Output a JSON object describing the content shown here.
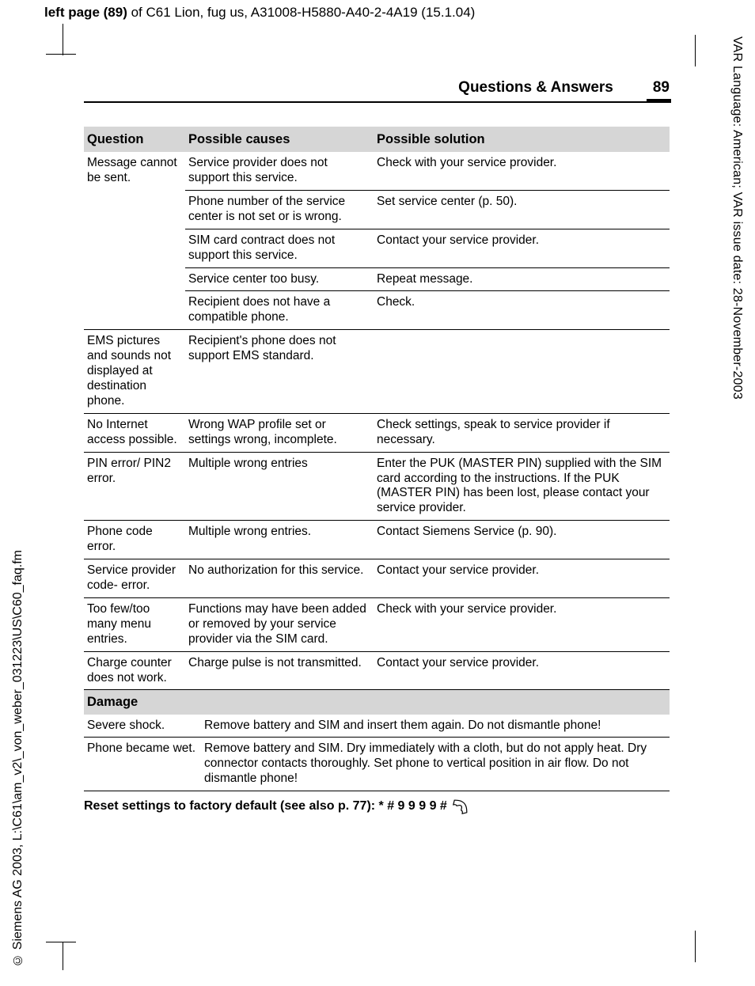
{
  "top_header": {
    "bold": "left page (89)",
    "rest": " of C61 Lion, fug us, A31008-H5880-A40-2-4A19 (15.1.04)"
  },
  "side_right": "VAR Language: American; VAR issue date: 28-November-2003",
  "side_left": "© Siemens AG 2003, L:\\C61\\am_v2\\_von_weber_031223\\US\\C60_faq.fm",
  "running_head": {
    "title": "Questions & Answers",
    "page": "89"
  },
  "headers": {
    "q": "Question",
    "c": "Possible causes",
    "s": "Possible solution"
  },
  "col_widths": {
    "q": "128px",
    "c": "238px",
    "s": "auto"
  },
  "rows": [
    {
      "q": "Message cannot be sent.",
      "items": [
        {
          "c": "Service provider does not support this service.",
          "s": "Check with your service provider."
        },
        {
          "c": "Phone number of the service center is not set or is wrong.",
          "s": "Set service center (p. 50)."
        },
        {
          "c": "SIM card contract does not support this service.",
          "s": "Contact your service provider."
        },
        {
          "c": "Service center too busy.",
          "s": "Repeat message."
        },
        {
          "c": "Recipient does not have a compatible phone.",
          "s": "Check."
        }
      ]
    },
    {
      "q": "EMS pictures and sounds not displayed at destination phone.",
      "items": [
        {
          "c": "Recipient's phone does not support EMS standard.",
          "s": ""
        }
      ]
    },
    {
      "q": "No Internet access possible.",
      "items": [
        {
          "c": "Wrong WAP profile set or settings wrong, incomplete.",
          "s": "Check settings, speak to service provider if necessary."
        }
      ]
    },
    {
      "q": "PIN error/ PIN2 error.",
      "items": [
        {
          "c": "Multiple wrong entries",
          "s": "Enter the PUK (MASTER PIN) supplied with the SIM card according to the instructions. If the PUK (MASTER PIN) has been lost, please contact your service provider."
        }
      ]
    },
    {
      "q": "Phone code error.",
      "items": [
        {
          "c": "Multiple wrong entries.",
          "s": "Contact Siemens Service (p. 90)."
        }
      ]
    },
    {
      "q": "Service provider code- error.",
      "items": [
        {
          "c": "No authorization for this service.",
          "s": "Contact your service provider."
        }
      ]
    },
    {
      "q": "Too few/too many menu entries.",
      "items": [
        {
          "c": "Functions may have been added or removed by your service provider via the SIM card.",
          "s": "Check with your service provider."
        }
      ]
    },
    {
      "q": "Charge counter does not work.",
      "items": [
        {
          "c": "Charge pulse is not transmitted.",
          "s": "Contact your service provider."
        }
      ]
    }
  ],
  "damage_header": "Damage",
  "damage_rows": [
    {
      "q": "Severe shock.",
      "s": "Remove battery and SIM and insert them again. Do not dismantle phone!"
    },
    {
      "q": "Phone became wet.",
      "s": "Remove battery and SIM. Dry immediately with a cloth, but do not apply heat. Dry connector contacts thoroughly. Set phone to vertical position in air flow. Do not dismantle phone!"
    }
  ],
  "reset_line": "Reset settings to factory default (see also p. 77): * # 9 9 9 9 #"
}
